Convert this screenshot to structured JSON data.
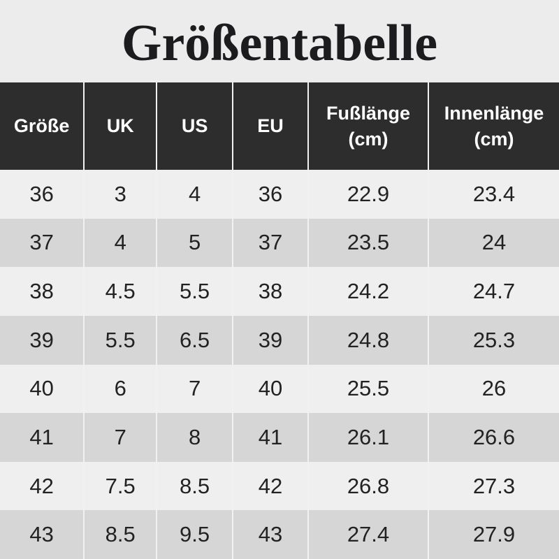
{
  "page": {
    "title": "Größentabelle",
    "background": "#ececec"
  },
  "colors": {
    "header_bg": "#2d2d2d",
    "header_text": "#ffffff",
    "row_light": "#efefef",
    "row_dark": "#d6d6d6",
    "separator": "#f1f1f1",
    "title_color": "#1c1c1e",
    "body_text": "#222222"
  },
  "table": {
    "column_keys": [
      "groesse",
      "uk",
      "us",
      "eu",
      "fusslaenge-cm",
      "innenlaenge-cm"
    ],
    "columns": [
      "Größe",
      "UK",
      "US",
      "EU",
      "Fußlänge (cm)",
      "Innenlänge (cm)"
    ],
    "rows": [
      [
        "36",
        "3",
        "4",
        "36",
        "22.9",
        "23.4"
      ],
      [
        "37",
        "4",
        "5",
        "37",
        "23.5",
        "24"
      ],
      [
        "38",
        "4.5",
        "5.5",
        "38",
        "24.2",
        "24.7"
      ],
      [
        "39",
        "5.5",
        "6.5",
        "39",
        "24.8",
        "25.3"
      ],
      [
        "40",
        "6",
        "7",
        "40",
        "25.5",
        "26"
      ],
      [
        "41",
        "7",
        "8",
        "41",
        "26.1",
        "26.6"
      ],
      [
        "42",
        "7.5",
        "8.5",
        "42",
        "26.8",
        "27.3"
      ],
      [
        "43",
        "8.5",
        "9.5",
        "43",
        "27.4",
        "27.9"
      ]
    ]
  }
}
